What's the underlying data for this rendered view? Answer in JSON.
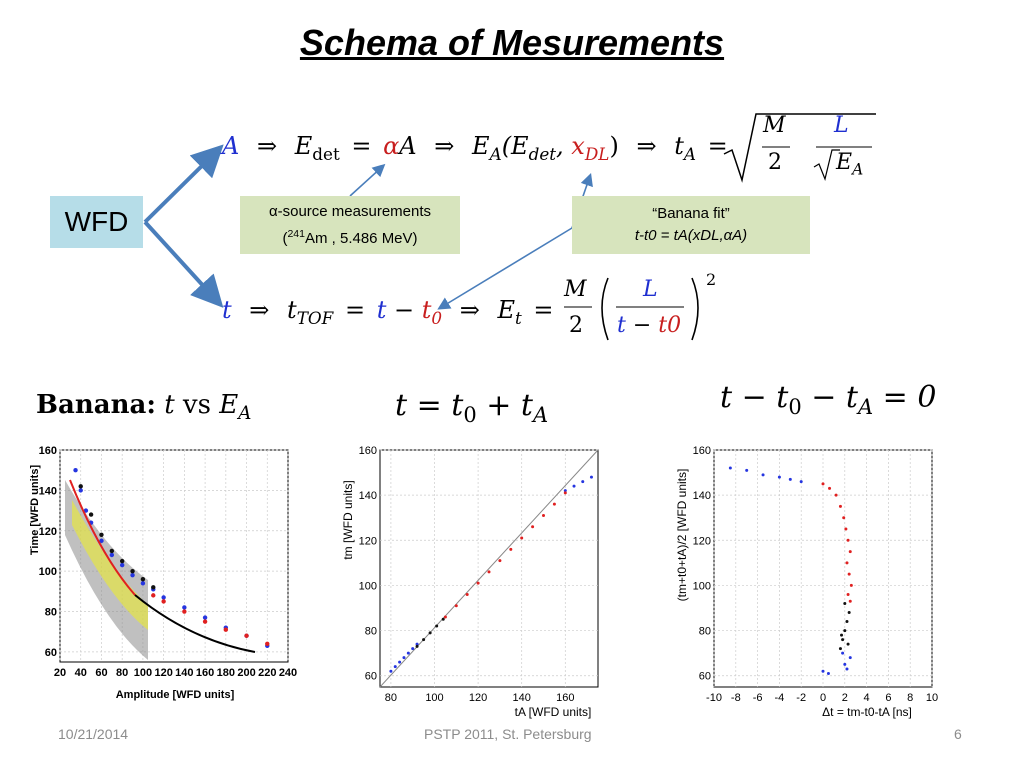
{
  "slide": {
    "title": "Schema of Mesurements",
    "wfd_label": "WFD",
    "alpha_box": {
      "line1": "α-source measurements",
      "line2_open": "(",
      "line2_sup": "241",
      "line2_rest": "Am , 5.486 MeV)"
    },
    "banana_box": {
      "line1": "“Banana fit”",
      "line2": "t-t0 = tA(xDL,αA)"
    },
    "eq_top": {
      "A": "A",
      "arrow": "⇒",
      "E": "E",
      "det": "det",
      "eq": "=",
      "alphaA": "αA",
      "EA_open": "(E",
      "comma": ",",
      "x": "x",
      "DL": "DL",
      "close": ")",
      "t": "t",
      "M": "M",
      "two": "2",
      "L": "L"
    },
    "eq_bottom": {
      "t": "t",
      "arrow": "⇒",
      "TOF": "TOF",
      "eq": "=",
      "minus": "−",
      "t0": "t",
      "zero": "0",
      "E": "E",
      "sub_t": "t",
      "M": "M",
      "two": "2",
      "L": "L",
      "den": "t − t0",
      "sq": "2"
    },
    "plot1_title": {
      "bold": "Banana:",
      "t": "t",
      "vs": "vs",
      "E": "E",
      "sub": "A"
    },
    "plot2_title": "t = t0 + tA",
    "plot3_title": "t − t0 − tA = 0",
    "footer": {
      "date": "10/21/2014",
      "conference": "PSTP 2011, St. Petersburg",
      "page": "6"
    }
  },
  "chart_data": [
    {
      "type": "scatter",
      "title": "",
      "xlabel": "Amplitude [WFD units]",
      "ylabel": "Time [WFD units]",
      "xlim": [
        20,
        240
      ],
      "ylim": [
        55,
        160
      ],
      "xticks": [
        20,
        40,
        60,
        80,
        100,
        120,
        140,
        160,
        180,
        200,
        220,
        240
      ],
      "yticks": [
        60,
        80,
        100,
        120,
        140,
        160
      ],
      "grid": true,
      "series": [
        {
          "values": [
            [
              35,
              150
            ],
            [
              40,
              140
            ],
            [
              45,
              130
            ],
            [
              50,
              124
            ],
            [
              60,
              115
            ],
            [
              70,
              108
            ],
            [
              80,
              103
            ],
            [
              90,
              98
            ],
            [
              100,
              94
            ],
            [
              110,
              91
            ],
            [
              120,
              87
            ],
            [
              140,
              82
            ],
            [
              160,
              77
            ],
            [
              180,
              72
            ],
            [
              200,
              68
            ],
            [
              220,
              63
            ]
          ]
        },
        {
          "values": [
            [
              40,
              142
            ],
            [
              50,
              128
            ],
            [
              60,
              118
            ],
            [
              70,
              110
            ],
            [
              80,
              105
            ],
            [
              90,
              100
            ],
            [
              100,
              96
            ],
            [
              110,
              92
            ]
          ]
        },
        {
          "values": [
            [
              110,
              88
            ],
            [
              120,
              85
            ],
            [
              140,
              80
            ],
            [
              160,
              75
            ],
            [
              180,
              71
            ],
            [
              200,
              68
            ],
            [
              220,
              64
            ]
          ]
        }
      ]
    },
    {
      "type": "scatter",
      "title": "",
      "xlabel": "tA [WFD units]",
      "ylabel": "tm [WFD units]",
      "xlim": [
        75,
        175
      ],
      "ylim": [
        55,
        160
      ],
      "xticks": [
        80,
        100,
        120,
        140,
        160
      ],
      "yticks": [
        60,
        80,
        100,
        120,
        140,
        160
      ],
      "grid": true,
      "series": [
        {
          "values": [
            [
              80,
              62
            ],
            [
              82,
              64
            ],
            [
              84,
              66
            ],
            [
              86,
              68
            ],
            [
              88,
              70
            ],
            [
              90,
              72
            ],
            [
              92,
              74
            ],
            [
              160,
              142
            ],
            [
              164,
              144
            ],
            [
              168,
              146
            ],
            [
              172,
              148
            ]
          ]
        },
        {
          "values": [
            [
              92,
              73
            ],
            [
              95,
              76
            ],
            [
              98,
              79
            ],
            [
              101,
              82
            ],
            [
              104,
              85
            ]
          ]
        },
        {
          "values": [
            [
              105,
              86
            ],
            [
              110,
              91
            ],
            [
              115,
              96
            ],
            [
              120,
              101
            ],
            [
              125,
              106
            ],
            [
              130,
              111
            ],
            [
              135,
              116
            ],
            [
              140,
              121
            ],
            [
              145,
              126
            ],
            [
              150,
              131
            ],
            [
              155,
              136
            ],
            [
              160,
              141
            ]
          ]
        }
      ]
    },
    {
      "type": "scatter",
      "title": "",
      "xlabel": "Δt = tm-t0-tA [ns]",
      "ylabel": "(tm+t0+tA)/2 [WFD units]",
      "xlim": [
        -10,
        10
      ],
      "ylim": [
        55,
        160
      ],
      "xticks": [
        -10,
        -8,
        -6,
        -4,
        -2,
        0,
        2,
        4,
        6,
        8,
        10
      ],
      "yticks": [
        60,
        80,
        100,
        120,
        140,
        160
      ],
      "grid": true,
      "series": [
        {
          "values": [
            [
              -8.5,
              152
            ],
            [
              -7,
              151
            ],
            [
              -5.5,
              149
            ],
            [
              -4,
              148
            ],
            [
              -3,
              147
            ],
            [
              -2,
              146
            ],
            [
              0,
              62
            ],
            [
              0.5,
              61
            ],
            [
              1.8,
              70
            ],
            [
              2,
              65
            ],
            [
              2.2,
              63
            ],
            [
              2.5,
              68
            ]
          ]
        },
        {
          "values": [
            [
              1.6,
              72
            ],
            [
              1.8,
              76
            ],
            [
              2.0,
              80
            ],
            [
              2.2,
              84
            ],
            [
              2.4,
              88
            ],
            [
              2.0,
              92
            ],
            [
              1.7,
              78
            ],
            [
              2.3,
              74
            ]
          ]
        },
        {
          "values": [
            [
              0,
              145
            ],
            [
              0.6,
              143
            ],
            [
              1.2,
              140
            ],
            [
              1.6,
              135
            ],
            [
              1.9,
              130
            ],
            [
              2.1,
              125
            ],
            [
              2.3,
              120
            ],
            [
              2.5,
              115
            ],
            [
              2.2,
              110
            ],
            [
              2.4,
              105
            ],
            [
              2.6,
              100
            ],
            [
              2.3,
              96
            ],
            [
              2.5,
              93
            ]
          ]
        }
      ]
    }
  ]
}
